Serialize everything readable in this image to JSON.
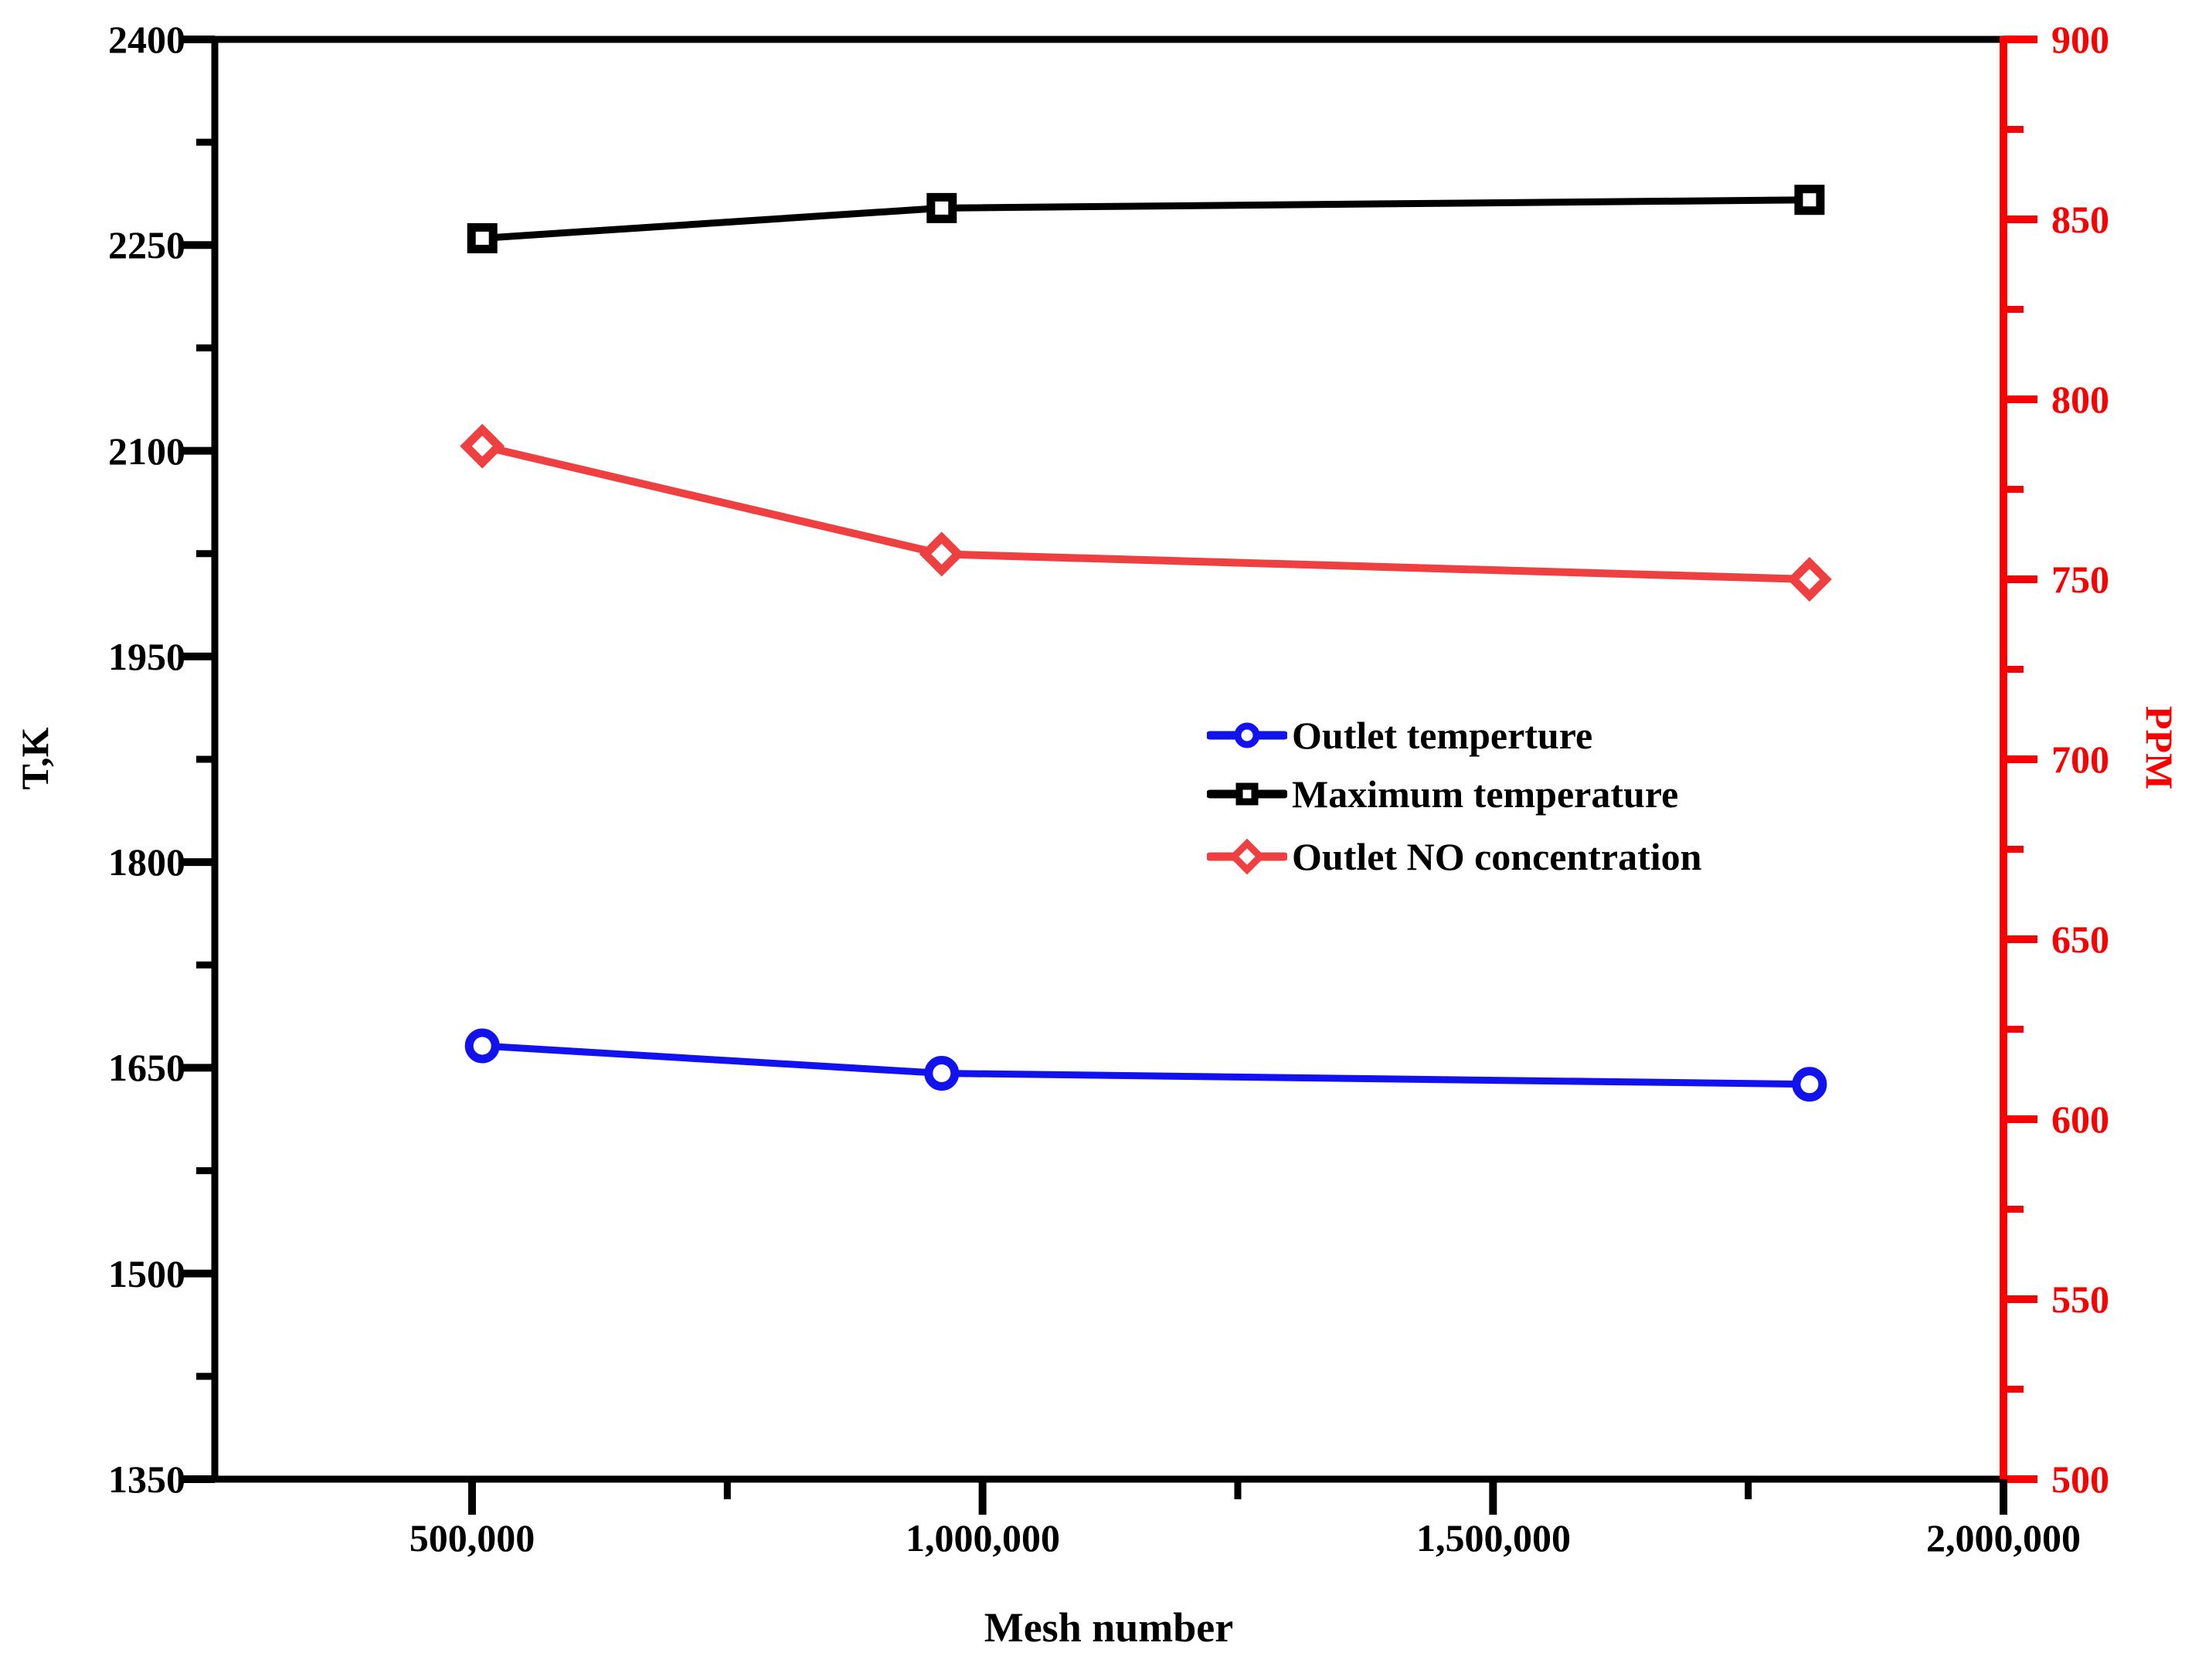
{
  "chart_data": {
    "type": "line",
    "x_label": "Mesh number",
    "x_tick_labels": [
      "500,000",
      "1,000,000",
      "1,500,000",
      "2,000,000"
    ],
    "x_tick_values": [
      500000,
      1000000,
      1500000,
      2000000
    ],
    "x_range": [
      248000,
      2000000
    ],
    "x": [
      510000,
      960000,
      1810000
    ],
    "series": [
      {
        "name": "Outlet temperture",
        "axis": "left",
        "marker": "circle",
        "color": "#1212ee",
        "values": [
          1666,
          1646,
          1638
        ]
      },
      {
        "name": "Maximum temperature",
        "axis": "left",
        "marker": "square",
        "color": "#000000",
        "values": [
          2255,
          2277,
          2283
        ]
      },
      {
        "name": "Outlet NO concentration",
        "axis": "right",
        "marker": "diamond",
        "color": "#ee4040",
        "values": [
          787,
          757,
          750
        ]
      }
    ],
    "left_axis": {
      "label": "T,K",
      "color": "#000000",
      "range": [
        1350,
        2400
      ],
      "tick_values": [
        2400,
        2250,
        2100,
        1950,
        1800,
        1650,
        1500,
        1350
      ],
      "tick_labels_desc": [
        "2400",
        "2250",
        "2100",
        "1950",
        "1800",
        "1650",
        "1500",
        "1350"
      ]
    },
    "right_axis": {
      "label": "PPM",
      "color": "#fb0000",
      "range": [
        500,
        900
      ],
      "tick_values": [
        900,
        850,
        800,
        750,
        700,
        650,
        600,
        550,
        500
      ],
      "tick_labels_desc": [
        "900",
        "850",
        "800",
        "750",
        "700",
        "650",
        "600",
        "550",
        "500"
      ]
    },
    "legend_position": "center-right",
    "grid": false
  }
}
